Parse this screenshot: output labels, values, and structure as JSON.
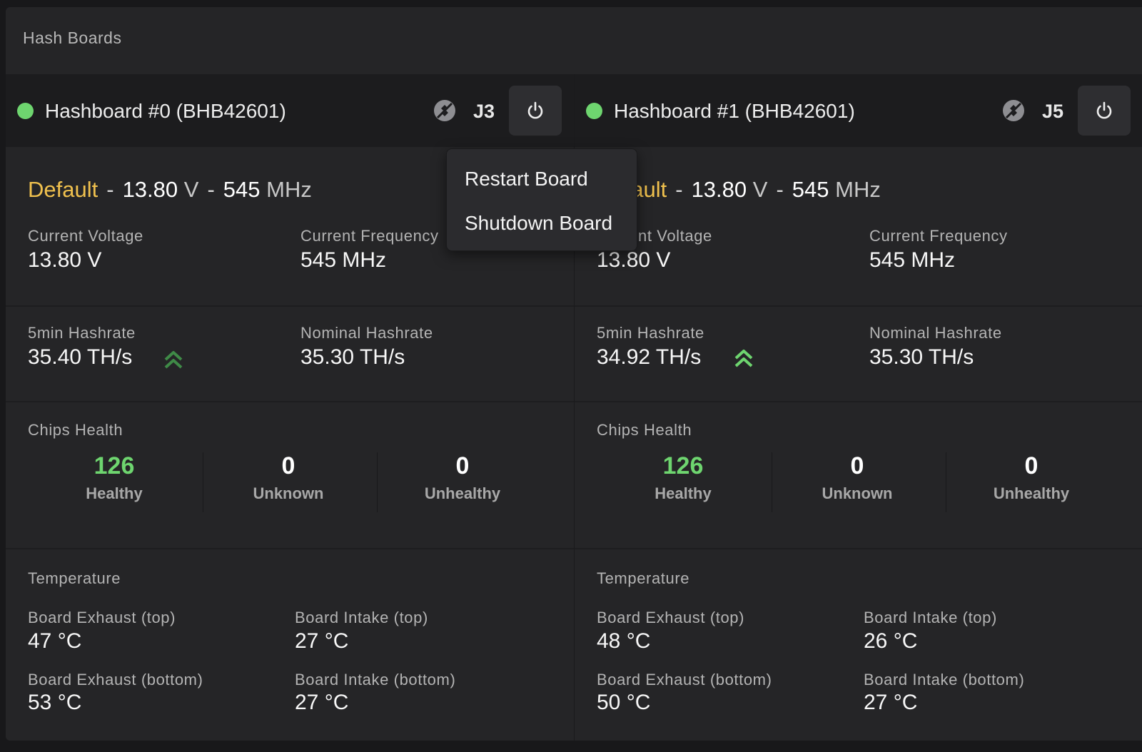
{
  "panel": {
    "title": "Hash Boards"
  },
  "boards": [
    {
      "name": "Hashboard #0 (BHB42601)",
      "connector": "J3",
      "profile": {
        "name": "Default",
        "voltage": "13.80",
        "voltage_unit": "V",
        "frequency": "545",
        "frequency_unit": "MHz"
      },
      "current_voltage": {
        "label": "Current Voltage",
        "value": "13.80 V"
      },
      "current_frequency": {
        "label": "Current Frequency",
        "value": "545 MHz"
      },
      "hashrate_5min": {
        "label": "5min Hashrate",
        "value": "35.40 TH/s"
      },
      "nominal_hashrate": {
        "label": "Nominal Hashrate",
        "value": "35.30 TH/s"
      },
      "chips": {
        "title": "Chips Health",
        "healthy": "126",
        "healthy_label": "Healthy",
        "unknown": "0",
        "unknown_label": "Unknown",
        "unhealthy": "0",
        "unhealthy_label": "Unhealthy"
      },
      "temperature": {
        "title": "Temperature",
        "exhaust_top": {
          "label": "Board Exhaust (top)",
          "value": "47 °C"
        },
        "intake_top": {
          "label": "Board Intake (top)",
          "value": "27 °C"
        },
        "exhaust_bottom": {
          "label": "Board Exhaust (bottom)",
          "value": "53 °C"
        },
        "intake_bottom": {
          "label": "Board Intake (bottom)",
          "value": "27 °C"
        }
      }
    },
    {
      "name": "Hashboard #1 (BHB42601)",
      "connector": "J5",
      "profile": {
        "name": "Default",
        "voltage": "13.80",
        "voltage_unit": "V",
        "frequency": "545",
        "frequency_unit": "MHz"
      },
      "current_voltage": {
        "label": "Current Voltage",
        "value": "13.80 V"
      },
      "current_frequency": {
        "label": "Current Frequency",
        "value": "545 MHz"
      },
      "hashrate_5min": {
        "label": "5min Hashrate",
        "value": "34.92 TH/s"
      },
      "nominal_hashrate": {
        "label": "Nominal Hashrate",
        "value": "35.30 TH/s"
      },
      "chips": {
        "title": "Chips Health",
        "healthy": "126",
        "healthy_label": "Healthy",
        "unknown": "0",
        "unknown_label": "Unknown",
        "unhealthy": "0",
        "unhealthy_label": "Unhealthy"
      },
      "temperature": {
        "title": "Temperature",
        "exhaust_top": {
          "label": "Board Exhaust (top)",
          "value": "48 °C"
        },
        "intake_top": {
          "label": "Board Intake (top)",
          "value": "26 °C"
        },
        "exhaust_bottom": {
          "label": "Board Exhaust (bottom)",
          "value": "50 °C"
        },
        "intake_bottom": {
          "label": "Board Intake (bottom)",
          "value": "27 °C"
        }
      }
    }
  ],
  "menu": {
    "items": [
      "Restart Board",
      "Shutdown Board"
    ]
  },
  "colors": {
    "status_ok": "#6ed56f",
    "profile": "#f0c14e",
    "trend_up_dim": "#3f8a47",
    "trend_up": "#6ed56f"
  },
  "icons": {
    "status": "status-dot",
    "connector": "disconnected-plug-icon",
    "power": "power-icon",
    "trend": "double-chevron-up-icon"
  }
}
